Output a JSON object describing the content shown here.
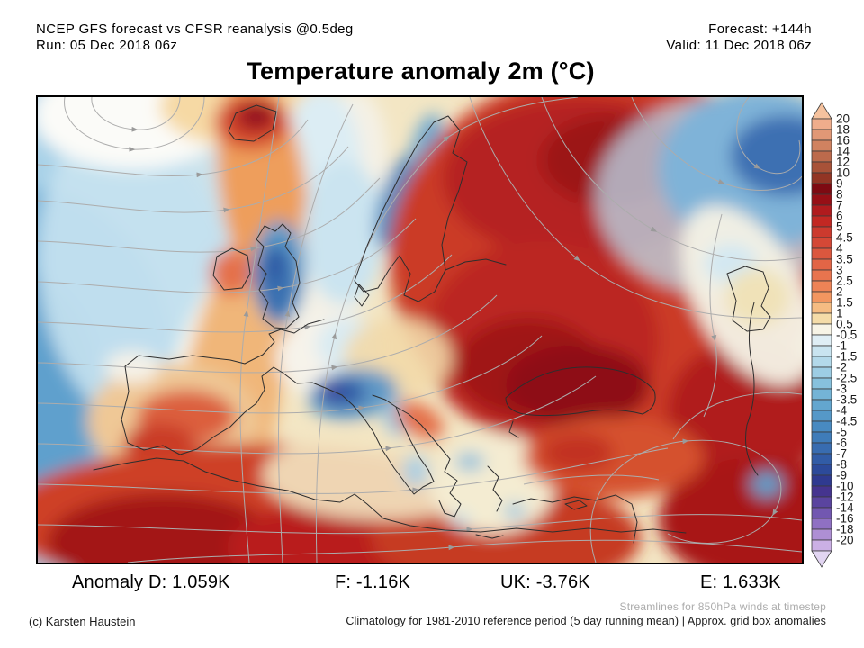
{
  "header": {
    "product": "NCEP GFS forecast vs CFSR reanalysis @0.5deg",
    "run": "Run: 05 Dec 2018 06z",
    "forecast": "Forecast: +144h",
    "valid": "Valid: 11 Dec 2018 06z"
  },
  "title": "Temperature anomaly 2m (°C)",
  "stats": {
    "d": "Anomaly D: 1.059K",
    "f": "F: -1.16K",
    "uk": "UK: -3.76K",
    "e": "E: 1.633K"
  },
  "footer": {
    "streamlines_note": "Streamlines for 850hPa winds at timestep",
    "credit": "(c) Karsten Haustein",
    "climatology": "Climatology for 1981-2010 reference period (5 day running mean) | Approx. grid box anomalies"
  },
  "colorbar": {
    "labels": [
      "20",
      "18",
      "16",
      "14",
      "12",
      "10",
      "9",
      "8",
      "7",
      "6",
      "5",
      "4.5",
      "4",
      "3.5",
      "3",
      "2.5",
      "2",
      "1.5",
      "1",
      "0.5",
      "-0.5",
      "-1",
      "-1.5",
      "-2",
      "-2.5",
      "-3",
      "-3.5",
      "-4",
      "-4.5",
      "-5",
      "-6",
      "-7",
      "-8",
      "-9",
      "-10",
      "-12",
      "-14",
      "-16",
      "-18",
      "-20"
    ],
    "cell_colors": [
      "#EFAD8C",
      "#E19876",
      "#D08260",
      "#BC6A4C",
      "#A85238",
      "#923524",
      "#7E0A12",
      "#970F16",
      "#B01B1E",
      "#C22823",
      "#CC3A2E",
      "#D44836",
      "#DB573E",
      "#E26546",
      "#E8744E",
      "#EE8356",
      "#F29660",
      "#F5BC82",
      "#F4DCA8",
      "#F7F4E6",
      "#DFEEF5",
      "#C9E4F0",
      "#B3D9EA",
      "#9DCDE4",
      "#87C1DD",
      "#74B4D6",
      "#63A6CF",
      "#5598C8",
      "#488AC1",
      "#3F7CB9",
      "#386CB0",
      "#315CA6",
      "#2C4A9A",
      "#2F3A90",
      "#45348F",
      "#5A449F",
      "#7257B1",
      "#8F70C3",
      "#AE8FD4",
      "#CBB0E5"
    ],
    "triangle_top_color": "#F5C29E",
    "triangle_bottom_color": "#E2D5F2",
    "border_color": "#3a3a3a",
    "label_color": "#1a1a1a"
  }
}
